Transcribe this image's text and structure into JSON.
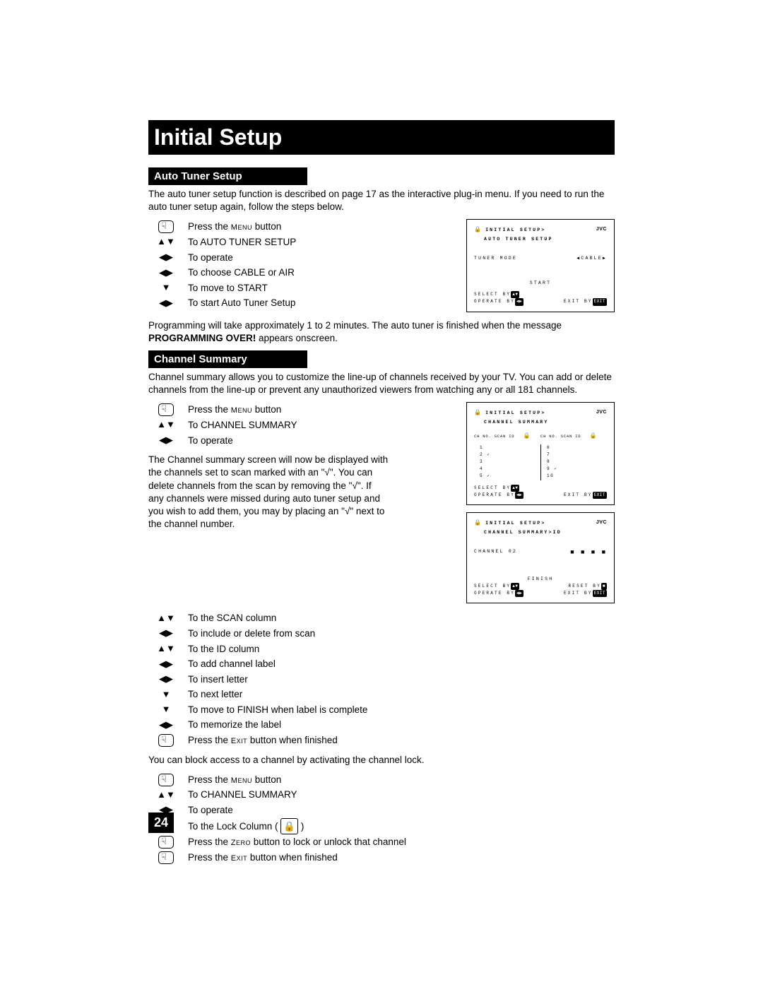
{
  "page_number": "24",
  "title": "Initial Setup",
  "section1": {
    "heading": "Auto Tuner Setup",
    "intro": "The auto tuner setup function is described on page 17 as the interactive plug-in menu.  If you need to run the auto tuner setup again, follow the steps below.",
    "steps": [
      {
        "icon": "hand",
        "text_pre": "Press the ",
        "sc": "Menu",
        "text_post": " button"
      },
      {
        "icon": "▲▼",
        "text": "To AUTO TUNER SETUP"
      },
      {
        "icon": "◀▶",
        "text": "To operate"
      },
      {
        "icon": "◀▶",
        "text": "To choose CABLE or AIR"
      },
      {
        "icon": "▼",
        "text": "To move to START"
      },
      {
        "icon": "◀▶",
        "text": "To start Auto Tuner Setup"
      }
    ],
    "outro_pre": "Programming will take approximately 1 to 2 minutes.  The auto tuner is finished when the message ",
    "outro_bold": "PROGRAMMING OVER!",
    "outro_post": " appears onscreen."
  },
  "section2": {
    "heading": "Channel Summary",
    "intro": "Channel summary allows you to customize the line-up of channels received by your TV. You can add or delete channels from the line-up or prevent any unauthorized viewers from watching any or all 181 channels.",
    "stepsA": [
      {
        "icon": "hand",
        "text_pre": "Press the ",
        "sc": "Menu",
        "text_post": " button"
      },
      {
        "icon": "▲▼",
        "text": "To CHANNEL SUMMARY"
      },
      {
        "icon": "◀▶",
        "text": "To operate"
      }
    ],
    "mid": "The Channel summary screen will now be displayed with the channels set to scan marked with an \"√\". You can delete channels from the scan by removing the \"√\". If any channels were missed during auto tuner setup and you wish to add them, you may by placing an \"√\" next to the channel number.",
    "stepsB": [
      {
        "icon": "▲▼",
        "text": "To the SCAN column"
      },
      {
        "icon": "◀▶",
        "text": "To include or delete from scan"
      },
      {
        "icon": "▲▼",
        "text": "To the ID column"
      },
      {
        "icon": "◀▶",
        "text": "To add channel label"
      },
      {
        "icon": "◀▶",
        "text": "To insert letter"
      },
      {
        "icon": "▼",
        "text": "To next letter"
      },
      {
        "icon": "▼",
        "text": "To move to FINISH when label is complete"
      },
      {
        "icon": "◀▶",
        "text": "To memorize the label"
      },
      {
        "icon": "hand",
        "text_pre": "Press the ",
        "sc": "Exit",
        "text_post": " button when finished"
      }
    ],
    "lock_intro": "You can block access to a channel by activating the channel lock.",
    "stepsC": [
      {
        "icon": "hand",
        "text_pre": "Press the ",
        "sc": "Menu",
        "text_post": " button"
      },
      {
        "icon": "▲▼",
        "text": "To CHANNEL SUMMARY"
      },
      {
        "icon": "◀▶",
        "text": "To operate"
      },
      {
        "icon": "▲▼",
        "text_pre": "To the Lock Column ( ",
        "lock": true,
        "text_post": " )"
      },
      {
        "icon": "hand",
        "text_pre": "Press the ",
        "sc": "Zero",
        "text_post": " button to lock or unlock that channel"
      },
      {
        "icon": "hand",
        "text_pre": "Press the ",
        "sc": "Exit",
        "text_post": " button when finished"
      }
    ]
  },
  "osd1": {
    "brand": "JVC",
    "line1": "INITIAL SETUP>",
    "line2": "AUTO TUNER SETUP",
    "tuner_label": "TUNER MODE",
    "tuner_val": "◀CABLE▶",
    "start": "START",
    "foot_select": "SELECT  BY",
    "foot_operate": "OPERATE BY",
    "foot_exit": "EXIT BY"
  },
  "osd2": {
    "brand": "JVC",
    "line1": "INITIAL SETUP>",
    "line2": "CHANNEL SUMMARY",
    "colhdr": [
      "CH NO.",
      "SCAN",
      "ID",
      "",
      "CH NO.",
      "SCAN",
      "ID",
      ""
    ],
    "rows_left": [
      "1",
      "2 ✓",
      "3",
      "4",
      "5 ✓"
    ],
    "rows_right": [
      "6",
      "7",
      "8",
      "9 ✓",
      "10"
    ],
    "foot_select": "SELECT  BY",
    "foot_operate": "OPERATE BY",
    "foot_exit": "EXIT BY"
  },
  "osd3": {
    "brand": "JVC",
    "line1": "INITIAL SETUP>",
    "line2": "CHANNEL SUMMARY>ID",
    "channel": "CHANNEL  02",
    "finish": "FINISH",
    "foot_select": "SELECT  BY",
    "foot_reset": "RESET BY",
    "foot_operate": "OPERATE BY",
    "foot_exit": "EXIT BY"
  }
}
